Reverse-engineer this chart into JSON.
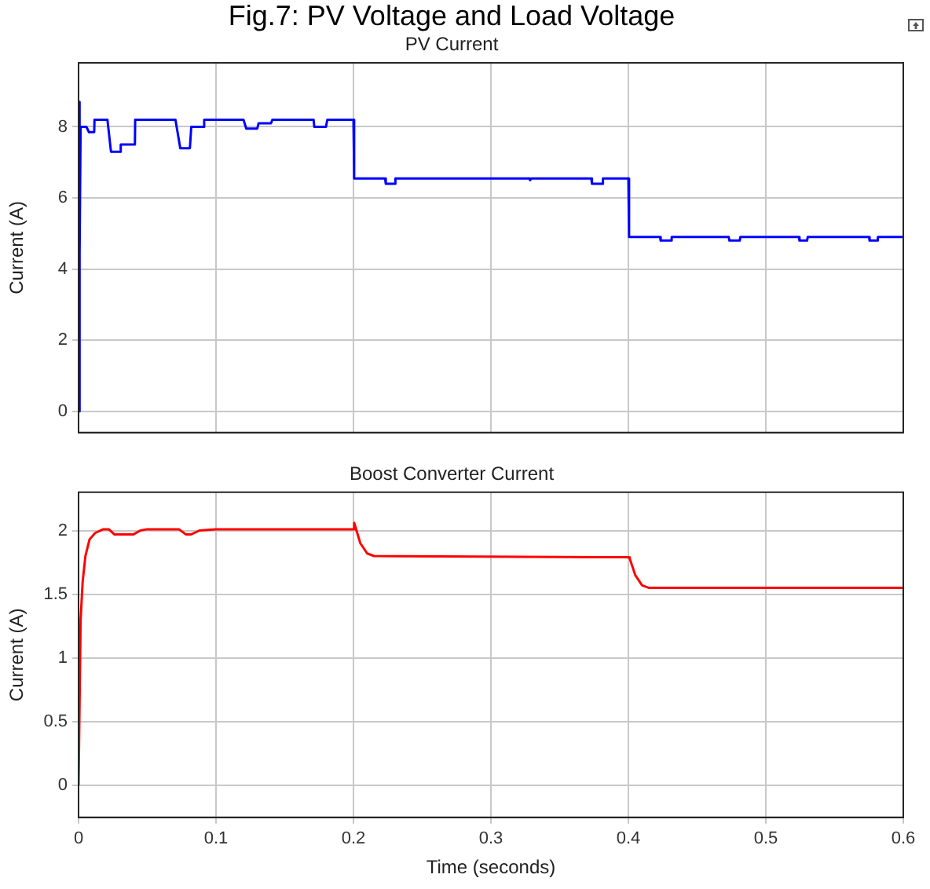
{
  "chart_data": [
    {
      "type": "line",
      "title": "Fig.7: PV Voltage and Load Voltage",
      "subtitle": "PV Current",
      "ylabel": "Current (A)",
      "xlim": [
        0,
        0.6
      ],
      "xticks": [
        0,
        0.1,
        0.2,
        0.3,
        0.4,
        0.5,
        0.6
      ],
      "ylim": [
        -0.6,
        9.8
      ],
      "yticks": [
        0,
        2,
        4,
        6,
        8
      ],
      "tick_labels": "y",
      "grid": true,
      "legend": false,
      "marker": "none",
      "line_style": "solid",
      "series": [
        {
          "color": "#0000ff",
          "x": [
            0,
            0.0005,
            0.001,
            0.0015,
            0.0057,
            0.0076,
            0.0114,
            0.0116,
            0.021,
            0.0236,
            0.0305,
            0.0307,
            0.041,
            0.0412,
            0.0705,
            0.074,
            0.081,
            0.082,
            0.0907,
            0.0914,
            0.12,
            0.122,
            0.13,
            0.131,
            0.14,
            0.141,
            0.171,
            0.1715,
            0.18,
            0.181,
            0.2,
            0.2005,
            0.223,
            0.2235,
            0.23,
            0.2305,
            0.328,
            0.3285,
            0.3295,
            0.373,
            0.3735,
            0.381,
            0.3815,
            0.4,
            0.4005,
            0.423,
            0.4235,
            0.431,
            0.4315,
            0.473,
            0.4735,
            0.481,
            0.4815,
            0.524,
            0.5245,
            0.53,
            0.5305,
            0.575,
            0.5755,
            0.581,
            0.5815,
            0.6
          ],
          "values": [
            0,
            8.7,
            4.4,
            8.0,
            8.0,
            7.85,
            7.85,
            8.2,
            8.2,
            7.3,
            7.3,
            7.5,
            7.5,
            8.2,
            8.2,
            7.4,
            7.4,
            8.0,
            8.0,
            8.2,
            8.2,
            7.95,
            7.95,
            8.1,
            8.1,
            8.2,
            8.2,
            8.0,
            8.0,
            8.2,
            8.2,
            6.55,
            6.55,
            6.4,
            6.4,
            6.55,
            6.55,
            6.5,
            6.55,
            6.55,
            6.4,
            6.4,
            6.55,
            6.55,
            4.9,
            4.9,
            4.8,
            4.8,
            4.9,
            4.9,
            4.8,
            4.8,
            4.9,
            4.9,
            4.8,
            4.8,
            4.9,
            4.9,
            4.8,
            4.8,
            4.9,
            4.9
          ]
        }
      ]
    },
    {
      "type": "line",
      "title": "Boost Converter Current",
      "xlabel": "Time (seconds)",
      "ylabel": "Current (A)",
      "xlim": [
        0,
        0.6
      ],
      "xticks": [
        0,
        0.1,
        0.2,
        0.3,
        0.4,
        0.5,
        0.6
      ],
      "ylim": [
        -0.25,
        2.3
      ],
      "yticks": [
        0,
        0.5,
        1,
        1.5,
        2
      ],
      "grid": true,
      "legend": false,
      "marker": "none",
      "line_style": "solid",
      "series": [
        {
          "color": "#ff0000",
          "x": [
            0,
            0.0015,
            0.003,
            0.005,
            0.008,
            0.012,
            0.018,
            0.022,
            0.026,
            0.04,
            0.045,
            0.05,
            0.073,
            0.078,
            0.082,
            0.088,
            0.1,
            0.2,
            0.2005,
            0.205,
            0.21,
            0.215,
            0.4,
            0.401,
            0.405,
            0.41,
            0.415,
            0.6
          ],
          "values": [
            0,
            1.3,
            1.6,
            1.8,
            1.93,
            1.98,
            2.01,
            2.01,
            1.97,
            1.97,
            2.0,
            2.01,
            2.01,
            1.97,
            1.97,
            2.0,
            2.01,
            2.01,
            2.06,
            1.9,
            1.82,
            1.8,
            1.79,
            1.78,
            1.65,
            1.57,
            1.55,
            1.55
          ]
        }
      ]
    }
  ]
}
